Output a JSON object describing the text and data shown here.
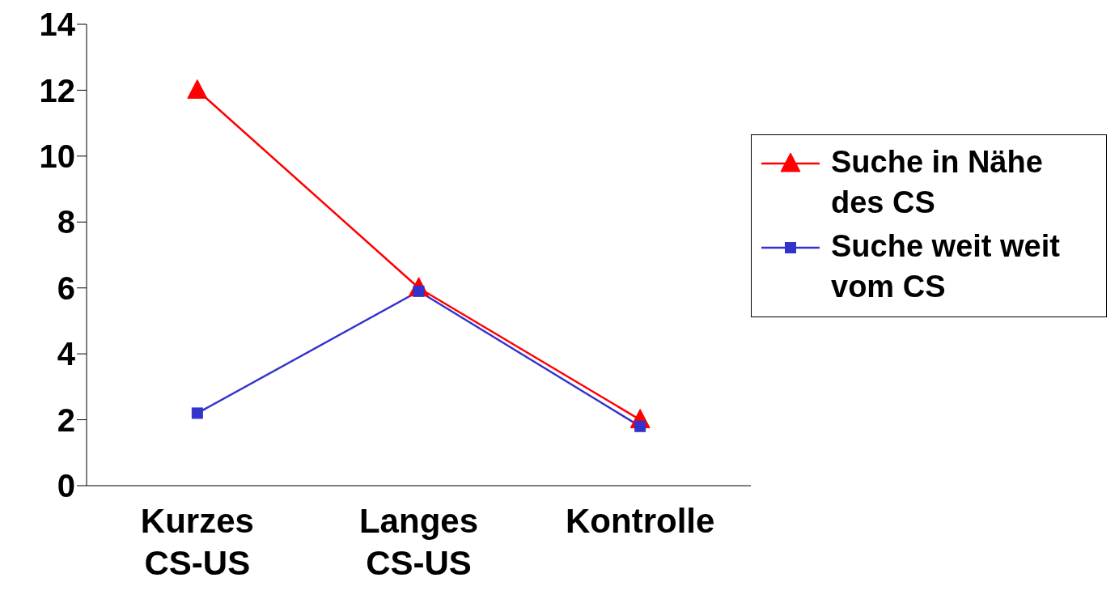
{
  "chart_data": {
    "type": "line",
    "categories": [
      "Kurzes\nCS-US",
      "Langes\nCS-US",
      "Kontrolle"
    ],
    "series": [
      {
        "name": "Suche in Nähe des CS",
        "color": "#ff0000",
        "marker": "triangle",
        "values": [
          12,
          6,
          2
        ]
      },
      {
        "name": "Suche weit weit vom CS",
        "color": "#3333cc",
        "marker": "square",
        "values": [
          2.2,
          5.9,
          1.8
        ]
      }
    ],
    "ylim": [
      0,
      14
    ],
    "yticks": [
      0,
      2,
      4,
      6,
      8,
      10,
      12,
      14
    ],
    "legend": "right"
  }
}
